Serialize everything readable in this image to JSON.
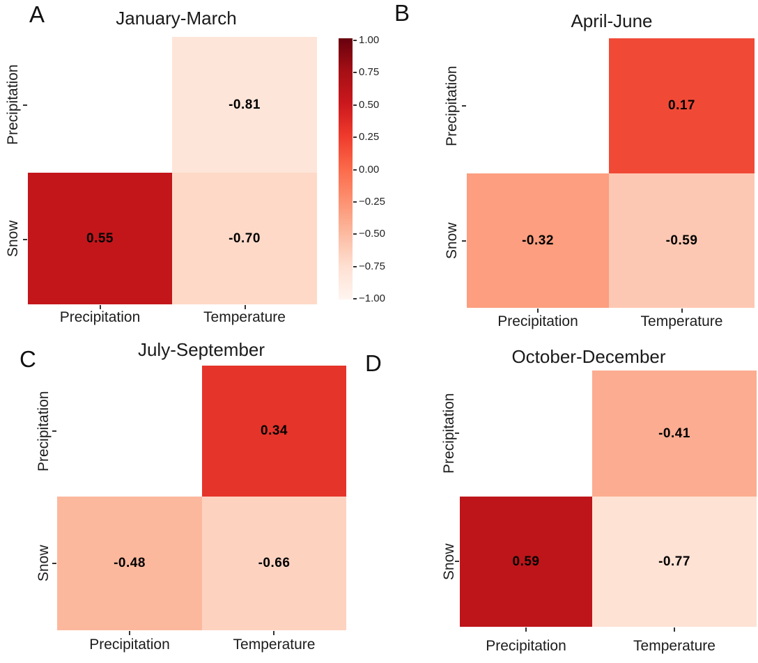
{
  "chart_data": [
    {
      "type": "heatmap",
      "panel_label": "A",
      "title": "January-March",
      "rows": [
        "Precipitation",
        "Snow"
      ],
      "columns": [
        "Precipitation",
        "Temperature"
      ],
      "values": [
        [
          null,
          -0.81
        ],
        [
          0.55,
          -0.7
        ]
      ],
      "cell_labels": [
        [
          null,
          "-0.81"
        ],
        [
          "0.55",
          "-0.70"
        ]
      ],
      "cell_colors": [
        [
          null,
          "#fee5d9"
        ],
        [
          "#c3161b",
          "#fed9c8"
        ]
      ],
      "colormap": "Reds",
      "vmin": -1,
      "vmax": 1,
      "has_colorbar": true,
      "masked_cells": [
        [
          "Precipitation",
          "Precipitation"
        ]
      ]
    },
    {
      "type": "heatmap",
      "panel_label": "B",
      "title": "April-June",
      "rows": [
        "Precipitation",
        "Snow"
      ],
      "columns": [
        "Precipitation",
        "Temperature"
      ],
      "values": [
        [
          null,
          0.17
        ],
        [
          -0.32,
          -0.59
        ]
      ],
      "cell_labels": [
        [
          null,
          "0.17"
        ],
        [
          "-0.32",
          "-0.59"
        ]
      ],
      "cell_colors": [
        [
          null,
          "#f04a37"
        ],
        [
          "#fc9e7f",
          "#fdc8b3"
        ]
      ],
      "colormap": "Reds",
      "vmin": -1,
      "vmax": 1,
      "has_colorbar": false,
      "masked_cells": [
        [
          "Precipitation",
          "Precipitation"
        ]
      ]
    },
    {
      "type": "heatmap",
      "panel_label": "C",
      "title": "July-September",
      "rows": [
        "Precipitation",
        "Snow"
      ],
      "columns": [
        "Precipitation",
        "Temperature"
      ],
      "values": [
        [
          null,
          0.34
        ],
        [
          -0.48,
          -0.66
        ]
      ],
      "cell_labels": [
        [
          null,
          "0.34"
        ],
        [
          "-0.48",
          "-0.66"
        ]
      ],
      "cell_colors": [
        [
          null,
          "#e5342a"
        ],
        [
          "#fcb89d",
          "#fdd3c0"
        ]
      ],
      "colormap": "Reds",
      "vmin": -1,
      "vmax": 1,
      "has_colorbar": false,
      "masked_cells": [
        [
          "Precipitation",
          "Precipitation"
        ]
      ]
    },
    {
      "type": "heatmap",
      "panel_label": "D",
      "title": "October-December",
      "rows": [
        "Precipitation",
        "Snow"
      ],
      "columns": [
        "Precipitation",
        "Temperature"
      ],
      "values": [
        [
          null,
          -0.41
        ],
        [
          0.59,
          -0.77
        ]
      ],
      "cell_labels": [
        [
          null,
          "-0.41"
        ],
        [
          "0.59",
          "-0.77"
        ]
      ],
      "cell_colors": [
        [
          null,
          "#fcac90"
        ],
        [
          "#bd151a",
          "#fee2d4"
        ]
      ],
      "colormap": "Reds",
      "vmin": -1,
      "vmax": 1,
      "has_colorbar": false,
      "masked_cells": [
        [
          "Precipitation",
          "Precipitation"
        ]
      ]
    }
  ],
  "colorbar": {
    "tick_labels": [
      "1.00",
      "0.75",
      "0.50",
      "0.25",
      "0.00",
      "−0.25",
      "−0.50",
      "−0.75",
      "−1.00"
    ],
    "vmin": -1,
    "vmax": 1,
    "gradient_stops": [
      "#67000d",
      "#a50f15",
      "#cb181d",
      "#ef3b2c",
      "#fb6a4a",
      "#fc9272",
      "#fcbba1",
      "#fee0d2",
      "#fff5f0"
    ]
  },
  "colors": {
    "background": "#ffffff",
    "label_text": "#1c1c1c",
    "annotation_text": "#000000",
    "tick": "#333333"
  }
}
